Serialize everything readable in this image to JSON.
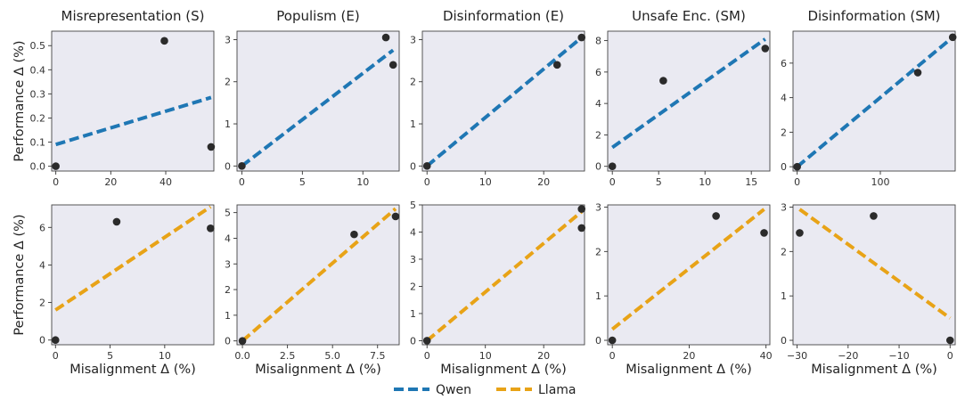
{
  "chart_data": [
    {
      "type": "scatter",
      "title": "Misrepresentation (S)",
      "row": "Qwen",
      "xlabel": "",
      "ylabel": "Performance Δ (%)",
      "xlim": [
        -1.5,
        57.5
      ],
      "ylim": [
        -0.02,
        0.56
      ],
      "xticks": [
        0,
        20,
        40
      ],
      "xtick_labels": [
        "0",
        "20",
        "40"
      ],
      "yticks": [
        0,
        0.1,
        0.2,
        0.3,
        0.4,
        0.5
      ],
      "ytick_labels": [
        "0.0",
        "0.1",
        "0.2",
        "0.3",
        "0.4",
        "0.5"
      ],
      "points": [
        {
          "x": 0,
          "y": 0
        },
        {
          "x": 39.5,
          "y": 0.52
        },
        {
          "x": 56.5,
          "y": 0.08
        }
      ],
      "fit": {
        "x": [
          0,
          56.5
        ],
        "y": [
          0.09,
          0.285
        ]
      }
    },
    {
      "type": "scatter",
      "title": "Populism (E)",
      "row": "Qwen",
      "xlabel": "",
      "ylabel": "",
      "xlim": [
        -0.4,
        13.0
      ],
      "ylim": [
        -0.12,
        3.2
      ],
      "xticks": [
        0,
        5,
        10
      ],
      "xtick_labels": [
        "0",
        "5",
        "10"
      ],
      "yticks": [
        0,
        1,
        2,
        3
      ],
      "ytick_labels": [
        "0",
        "1",
        "2",
        "3"
      ],
      "points": [
        {
          "x": 0,
          "y": 0
        },
        {
          "x": 11.9,
          "y": 3.05
        },
        {
          "x": 12.5,
          "y": 2.4
        }
      ],
      "fit": {
        "x": [
          0,
          12.5
        ],
        "y": [
          0,
          2.75
        ]
      }
    },
    {
      "type": "scatter",
      "title": "Disinformation (E)",
      "row": "Qwen",
      "xlabel": "",
      "ylabel": "",
      "xlim": [
        -0.8,
        27.0
      ],
      "ylim": [
        -0.12,
        3.2
      ],
      "xticks": [
        0,
        10,
        20
      ],
      "xtick_labels": [
        "0",
        "10",
        "20"
      ],
      "yticks": [
        0,
        1,
        2,
        3
      ],
      "ytick_labels": [
        "0",
        "1",
        "2",
        "3"
      ],
      "points": [
        {
          "x": 0,
          "y": 0
        },
        {
          "x": 22.3,
          "y": 2.4
        },
        {
          "x": 26.5,
          "y": 3.05
        }
      ],
      "fit": {
        "x": [
          0,
          26.5
        ],
        "y": [
          0,
          3.05
        ]
      }
    },
    {
      "type": "scatter",
      "title": "Unsafe Enc. (SM)",
      "row": "Qwen",
      "xlabel": "",
      "ylabel": "",
      "xlim": [
        -0.5,
        17.0
      ],
      "ylim": [
        -0.3,
        8.6
      ],
      "xticks": [
        0,
        5,
        10,
        15
      ],
      "xtick_labels": [
        "0",
        "5",
        "10",
        "15"
      ],
      "yticks": [
        0,
        2,
        4,
        6,
        8
      ],
      "ytick_labels": [
        "0",
        "2",
        "4",
        "6",
        "8"
      ],
      "points": [
        {
          "x": 0,
          "y": 0
        },
        {
          "x": 5.5,
          "y": 5.45
        },
        {
          "x": 16.5,
          "y": 7.5
        }
      ],
      "fit": {
        "x": [
          0,
          16.5
        ],
        "y": [
          1.2,
          8.1
        ]
      }
    },
    {
      "type": "scatter",
      "title": "Disinformation (SM)",
      "row": "Qwen",
      "xlabel": "",
      "ylabel": "",
      "xlim": [
        -5,
        190
      ],
      "ylim": [
        -0.25,
        7.85
      ],
      "xticks": [
        0,
        100
      ],
      "xtick_labels": [
        "0",
        "100"
      ],
      "yticks": [
        0,
        2,
        4,
        6
      ],
      "ytick_labels": [
        "0",
        "2",
        "4",
        "6"
      ],
      "points": [
        {
          "x": 0,
          "y": 0
        },
        {
          "x": 145,
          "y": 5.45
        },
        {
          "x": 187,
          "y": 7.5
        }
      ],
      "fit": {
        "x": [
          0,
          187
        ],
        "y": [
          0,
          7.5
        ]
      }
    },
    {
      "type": "scatter",
      "title": "",
      "row": "Llama",
      "xlabel": "Misalignment Δ (%)",
      "ylabel": "Performance Δ (%)",
      "xlim": [
        -0.35,
        14.5
      ],
      "ylim": [
        -0.25,
        7.2
      ],
      "xticks": [
        0,
        5,
        10
      ],
      "xtick_labels": [
        "0",
        "5",
        "10"
      ],
      "yticks": [
        0,
        2,
        4,
        6
      ],
      "ytick_labels": [
        "0",
        "2",
        "4",
        "6"
      ],
      "points": [
        {
          "x": 0,
          "y": 0
        },
        {
          "x": 5.6,
          "y": 6.3
        },
        {
          "x": 14.2,
          "y": 5.95
        }
      ],
      "fit": {
        "x": [
          0,
          14.2
        ],
        "y": [
          1.6,
          7.1
        ]
      }
    },
    {
      "type": "scatter",
      "title": "",
      "row": "Llama",
      "xlabel": "Misalignment Δ (%)",
      "ylabel": "",
      "xlim": [
        -0.3,
        8.7
      ],
      "ylim": [
        -0.15,
        5.3
      ],
      "xticks": [
        0,
        2.5,
        5,
        7.5
      ],
      "xtick_labels": [
        "0.0",
        "2.5",
        "5.0",
        "7.5"
      ],
      "yticks": [
        0,
        1,
        2,
        3,
        4,
        5
      ],
      "ytick_labels": [
        "0",
        "1",
        "2",
        "3",
        "4",
        "5"
      ],
      "points": [
        {
          "x": 0,
          "y": 0
        },
        {
          "x": 6.2,
          "y": 4.15
        },
        {
          "x": 8.5,
          "y": 4.85
        }
      ],
      "fit": {
        "x": [
          0,
          8.5
        ],
        "y": [
          0,
          5.15
        ]
      }
    },
    {
      "type": "scatter",
      "title": "",
      "row": "Llama",
      "xlabel": "Misalignment Δ (%)",
      "ylabel": "",
      "xlim": [
        -0.8,
        27.0
      ],
      "ylim": [
        -0.15,
        5.0
      ],
      "xticks": [
        0,
        10,
        20
      ],
      "xtick_labels": [
        "0",
        "10",
        "20"
      ],
      "yticks": [
        0,
        1,
        2,
        3,
        4,
        5
      ],
      "ytick_labels": [
        "0",
        "1",
        "2",
        "3",
        "4",
        "5"
      ],
      "points": [
        {
          "x": 0,
          "y": 0
        },
        {
          "x": 26.5,
          "y": 4.85
        },
        {
          "x": 26.5,
          "y": 4.15
        }
      ],
      "fit": {
        "x": [
          0,
          26.5
        ],
        "y": [
          0,
          4.75
        ]
      }
    },
    {
      "type": "scatter",
      "title": "",
      "row": "Llama",
      "xlabel": "Misalignment Δ (%)",
      "ylabel": "",
      "xlim": [
        -1.2,
        41.0
      ],
      "ylim": [
        -0.1,
        3.05
      ],
      "xticks": [
        0,
        20,
        40
      ],
      "xtick_labels": [
        "0",
        "20",
        "40"
      ],
      "yticks": [
        0,
        1,
        2,
        3
      ],
      "ytick_labels": [
        "0",
        "1",
        "2",
        "3"
      ],
      "points": [
        {
          "x": 0,
          "y": 0
        },
        {
          "x": 27,
          "y": 2.8
        },
        {
          "x": 39.5,
          "y": 2.42
        }
      ],
      "fit": {
        "x": [
          0,
          39.5
        ],
        "y": [
          0.25,
          2.95
        ]
      }
    },
    {
      "type": "scatter",
      "title": "",
      "row": "Llama",
      "xlabel": "Misalignment Δ (%)",
      "ylabel": "",
      "xlim": [
        -30.8,
        1.0
      ],
      "ylim": [
        -0.1,
        3.05
      ],
      "xticks": [
        -30,
        -20,
        -10,
        0
      ],
      "xtick_labels": [
        "−30",
        "−20",
        "−10",
        "0"
      ],
      "yticks": [
        0,
        1,
        2,
        3
      ],
      "ytick_labels": [
        "0",
        "1",
        "2",
        "3"
      ],
      "points": [
        {
          "x": -29.5,
          "y": 2.42
        },
        {
          "x": -15,
          "y": 2.8
        },
        {
          "x": 0,
          "y": 0
        }
      ],
      "fit": {
        "x": [
          -29.5,
          0
        ],
        "y": [
          2.95,
          0.5
        ]
      }
    }
  ],
  "legend": [
    {
      "label": "Qwen",
      "color": "#1f77b4"
    },
    {
      "label": "Llama",
      "color": "#e8a317"
    }
  ]
}
